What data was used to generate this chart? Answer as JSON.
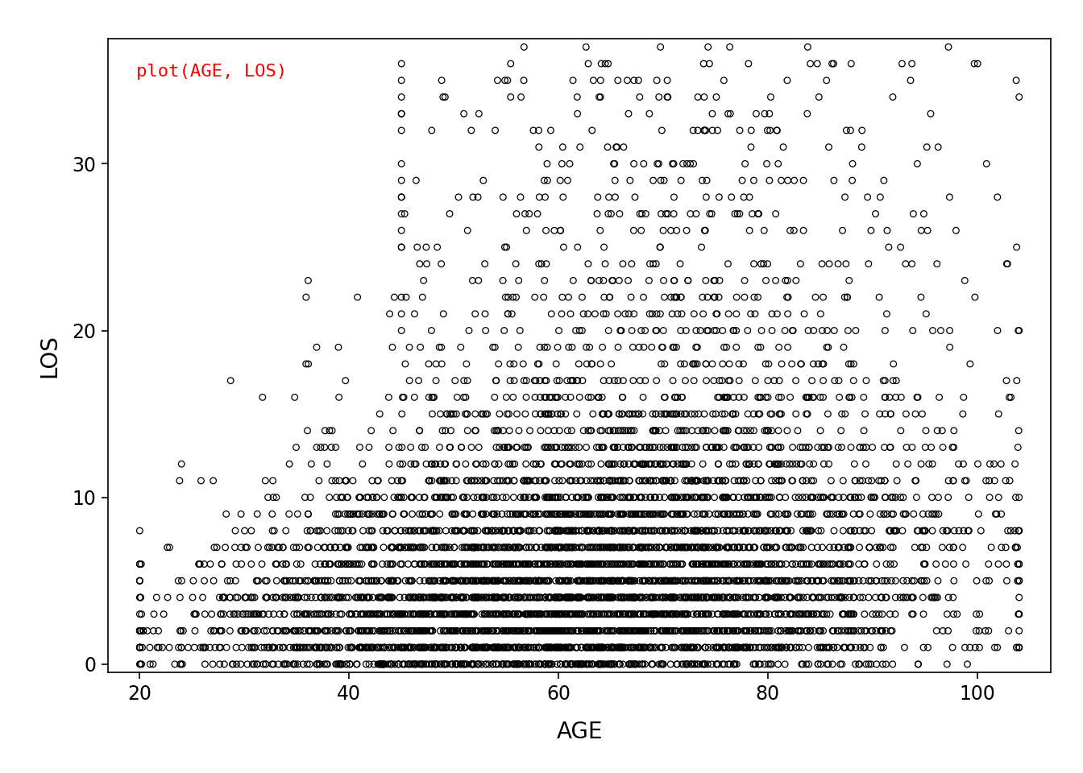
{
  "title": "",
  "xlabel": "AGE",
  "ylabel": "LOS",
  "annotation": "plot(AGE, LOS)",
  "annotation_color": "#FF0000",
  "xlim": [
    17,
    107
  ],
  "ylim": [
    -0.5,
    37.5
  ],
  "xticks": [
    20,
    40,
    60,
    80,
    100
  ],
  "yticks": [
    0,
    10,
    20,
    30
  ],
  "background_color": "#FFFFFF",
  "marker_color": "#000000",
  "marker_facecolor": "none",
  "marker_size": 5.5,
  "marker_linewidth": 0.9,
  "n_points": 6000,
  "seed": 123,
  "xlabel_fontsize": 20,
  "ylabel_fontsize": 20,
  "tick_fontsize": 17,
  "annotation_fontsize": 16
}
